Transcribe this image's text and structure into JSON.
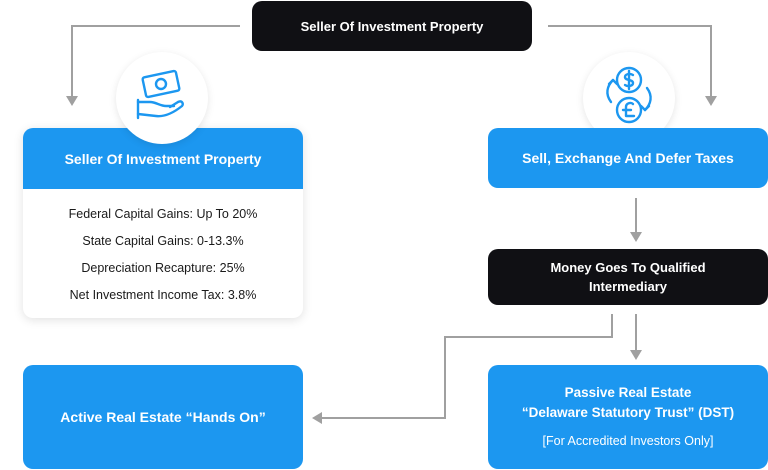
{
  "top_box": {
    "label": "Seller Of Investment Property"
  },
  "seller_card": {
    "title": "Seller Of Investment Property",
    "lines": [
      "Federal Capital Gains: Up To 20%",
      "State Capital Gains: 0-13.3%",
      "Depreciation Recapture: 25%",
      "Net Investment Income Tax: 3.8%"
    ]
  },
  "exchange_box": {
    "label": "Sell, Exchange And Defer Taxes"
  },
  "intermediary_box": {
    "label": "Money Goes To Qualified Intermediary"
  },
  "active_box": {
    "label": "Active Real Estate “Hands On”"
  },
  "passive_box": {
    "line1": "Passive Real Estate",
    "line2": "“Delaware Statutory Trust” (DST)",
    "note": "[For Accredited Investors Only]"
  },
  "icons": {
    "left_circle": "hand-with-cash-icon",
    "right_circle": "currency-exchange-icon"
  },
  "colors": {
    "blue": "#1c97f0",
    "dark": "#101014",
    "arrow": "#9a9a9a"
  }
}
